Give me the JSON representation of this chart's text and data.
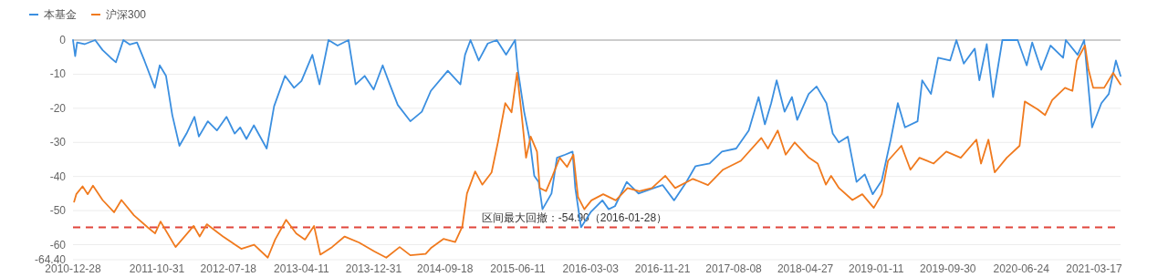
{
  "chart_data": {
    "type": "line",
    "xlim": [
      "2010-12-28",
      "2021-06-22"
    ],
    "xticks": [
      "2010-12-28",
      "2011-10-31",
      "2012-07-18",
      "2013-04-11",
      "2013-12-31",
      "2014-09-18",
      "2015-06-11",
      "2016-03-03",
      "2016-11-21",
      "2017-08-08",
      "2018-04-27",
      "2019-01-11",
      "2019-09-30",
      "2020-06-24",
      "2021-03-17"
    ],
    "ylim": [
      -64.4,
      0
    ],
    "yticks": [
      {
        "value": -64.4,
        "label": "-64.40"
      },
      -60,
      -50,
      -40,
      -30,
      -20,
      -10,
      0
    ],
    "grid": "y",
    "legend": "top left",
    "line_style": "solid",
    "marker": "none",
    "ref_lines": [
      {
        "axis": "y",
        "value": -54.9,
        "label": "区间最大回撤：-54.90（2016-01-28）",
        "color": "#e0443a",
        "line_style": "dashed"
      }
    ],
    "series": [
      {
        "name": "本基金",
        "color": "#3b8fe0",
        "x": [
          "2010-12-28",
          "2011-01-05",
          "2011-01-12",
          "2011-02-08",
          "2011-03-19",
          "2011-04-15",
          "2011-05-15",
          "2011-06-03",
          "2011-06-30",
          "2011-07-23",
          "2011-08-19",
          "2011-09-15",
          "2011-10-23",
          "2011-11-10",
          "2011-12-03",
          "2011-12-26",
          "2012-01-21",
          "2012-02-16",
          "2012-03-16",
          "2012-04-01",
          "2012-05-04",
          "2012-06-06",
          "2012-07-11",
          "2012-08-10",
          "2012-08-30",
          "2012-09-22",
          "2012-10-19",
          "2012-12-05",
          "2013-01-01",
          "2013-02-10",
          "2013-03-15",
          "2013-04-11",
          "2013-05-21",
          "2013-06-16",
          "2013-07-19",
          "2013-08-21",
          "2013-09-30",
          "2013-10-26",
          "2013-11-28",
          "2013-12-31",
          "2014-02-02",
          "2014-02-28",
          "2014-03-29",
          "2014-05-14",
          "2014-06-25",
          "2014-07-28",
          "2014-09-28",
          "2014-11-13",
          "2014-11-30",
          "2014-12-20",
          "2015-01-19",
          "2015-02-21",
          "2015-03-26",
          "2015-04-29",
          "2015-06-01",
          "2015-06-11",
          "2015-07-04",
          "2015-07-24",
          "2015-08-10",
          "2015-08-26",
          "2015-09-09",
          "2015-10-12",
          "2015-11-01",
          "2015-12-01",
          "2015-12-28",
          "2016-01-07",
          "2016-01-28",
          "2016-03-03",
          "2016-04-15",
          "2016-05-08",
          "2016-05-31",
          "2016-07-13",
          "2016-08-25",
          "2016-10-20",
          "2016-11-21",
          "2017-01-02",
          "2017-02-16",
          "2017-03-21",
          "2017-05-12",
          "2017-06-26",
          "2017-08-17",
          "2017-10-02",
          "2017-11-07",
          "2017-11-30",
          "2017-12-23",
          "2018-01-12",
          "2018-02-10",
          "2018-03-09",
          "2018-03-28",
          "2018-05-09",
          "2018-06-07",
          "2018-07-13",
          "2018-08-05",
          "2018-08-27",
          "2018-09-29",
          "2018-10-31",
          "2018-11-30",
          "2018-12-29",
          "2019-01-31",
          "2019-03-05",
          "2019-03-31",
          "2019-04-26",
          "2019-06-11",
          "2019-06-28",
          "2019-07-30",
          "2019-08-25",
          "2019-10-08",
          "2019-10-31",
          "2019-11-27",
          "2020-01-06",
          "2020-01-23",
          "2020-02-19",
          "2020-03-13",
          "2020-04-16",
          "2020-06-11",
          "2020-07-14",
          "2020-08-03",
          "2020-09-05",
          "2020-10-09",
          "2020-11-24",
          "2020-12-04",
          "2021-01-16",
          "2021-02-09",
          "2021-03-10",
          "2021-04-13",
          "2021-05-10",
          "2021-06-05",
          "2021-06-22"
        ],
        "values": [
          0,
          -4.7,
          -0.7,
          -1.2,
          0,
          -2.9,
          -5.2,
          -6.5,
          0,
          -1.3,
          -0.7,
          -6,
          -14,
          -7.4,
          -10.5,
          -22,
          -31,
          -27.4,
          -22.5,
          -28.3,
          -23.8,
          -26.5,
          -22.5,
          -27.4,
          -25.6,
          -29,
          -25,
          -31.8,
          -19.4,
          -10.5,
          -14,
          -12,
          -4.3,
          -13,
          0,
          -1.6,
          0,
          -13,
          -10.5,
          -14.5,
          -7.4,
          -13,
          -19,
          -23.8,
          -21,
          -14.9,
          -9,
          -13,
          -4.3,
          0,
          -6,
          -1,
          0,
          -4.3,
          0,
          -8.7,
          -21,
          -29,
          -39.8,
          -41.6,
          -49.6,
          -45,
          -34.5,
          -33.6,
          -32.7,
          -43.4,
          -54.9,
          -50.5,
          -47,
          -49.6,
          -48.7,
          -41.6,
          -45,
          -43.4,
          -42.5,
          -47,
          -41.6,
          -37,
          -36.2,
          -32.7,
          -31.8,
          -26.5,
          -16.7,
          -24.7,
          -18.5,
          -11.8,
          -21,
          -16.7,
          -23.4,
          -15.8,
          -13.6,
          -18.5,
          -27.4,
          -30,
          -28.3,
          -41.6,
          -39.4,
          -45.2,
          -41.2,
          -29.2,
          -18.5,
          -25.6,
          -23.8,
          -11.8,
          -15.8,
          -5.2,
          -6,
          0,
          -6.9,
          -2.5,
          -11.8,
          -1.2,
          -16.7,
          0,
          0,
          -7.4,
          -0.7,
          -8.7,
          -1.6,
          -5.2,
          0,
          -4.3,
          0,
          -25.6,
          -18.5,
          -15.8,
          -6,
          -10.5
        ]
      },
      {
        "name": "沪深300",
        "color": "#f07a1e",
        "x": [
          "2011-01-01",
          "2011-01-09",
          "2011-02-01",
          "2011-02-20",
          "2011-03-11",
          "2011-04-15",
          "2011-05-27",
          "2011-06-23",
          "2011-08-08",
          "2011-09-27",
          "2011-10-24",
          "2011-11-13",
          "2012-01-07",
          "2012-03-13",
          "2012-04-04",
          "2012-04-30",
          "2012-06-28",
          "2012-09-03",
          "2012-10-20",
          "2012-12-09",
          "2013-01-05",
          "2013-02-14",
          "2013-03-23",
          "2013-04-24",
          "2013-05-27",
          "2013-06-19",
          "2013-08-01",
          "2013-09-16",
          "2013-11-08",
          "2014-01-03",
          "2014-02-15",
          "2014-04-05",
          "2014-05-14",
          "2014-07-09",
          "2014-07-28",
          "2014-09-12",
          "2014-10-25",
          "2014-11-20",
          "2014-12-07",
          "2015-01-06",
          "2015-02-01",
          "2015-03-07",
          "2015-03-30",
          "2015-04-26",
          "2015-05-19",
          "2015-06-08",
          "2015-06-24",
          "2015-07-11",
          "2015-07-28",
          "2015-08-20",
          "2015-08-30",
          "2015-09-22",
          "2015-10-16",
          "2015-11-11",
          "2015-12-08",
          "2015-12-31",
          "2016-01-17",
          "2016-02-09",
          "2016-03-06",
          "2016-04-18",
          "2016-06-03",
          "2016-07-16",
          "2016-08-28",
          "2016-10-13",
          "2016-12-01",
          "2017-01-06",
          "2017-03-12",
          "2017-05-06",
          "2017-06-30",
          "2017-09-03",
          "2017-11-17",
          "2017-12-11",
          "2018-01-16",
          "2018-02-14",
          "2018-03-19",
          "2018-05-10",
          "2018-06-11",
          "2018-07-11",
          "2018-07-30",
          "2018-08-28",
          "2018-10-16",
          "2018-11-21",
          "2019-01-02",
          "2019-01-31",
          "2019-02-23",
          "2019-04-13",
          "2019-05-16",
          "2019-06-18",
          "2019-08-09",
          "2019-09-24",
          "2019-11-16",
          "2020-01-12",
          "2020-01-29",
          "2020-02-25",
          "2020-03-19",
          "2020-05-02",
          "2020-06-18",
          "2020-07-07",
          "2020-08-23",
          "2020-09-19",
          "2020-10-15",
          "2020-12-01",
          "2020-12-28",
          "2021-01-13",
          "2021-02-12",
          "2021-02-25",
          "2021-03-14",
          "2021-04-23",
          "2021-05-26",
          "2021-06-22"
        ],
        "values": [
          -47.4,
          -45.2,
          -42.9,
          -45.2,
          -42.7,
          -46.9,
          -50.5,
          -46.9,
          -51.4,
          -54.9,
          -56.7,
          -53.2,
          -60.7,
          -54.5,
          -57.6,
          -54,
          -57.6,
          -61.2,
          -60,
          -63.8,
          -58.5,
          -52.7,
          -56.7,
          -58.5,
          -54.5,
          -62.9,
          -60.7,
          -57.6,
          -59.4,
          -62,
          -63.8,
          -60.7,
          -63.1,
          -62.7,
          -61,
          -58.3,
          -59.2,
          -54.7,
          -45,
          -38.5,
          -42.4,
          -38.8,
          -30,
          -18.5,
          -21.2,
          -9.6,
          -21.2,
          -34.5,
          -28.3,
          -32.7,
          -43.4,
          -44.3,
          -39.8,
          -34.5,
          -37.2,
          -33.6,
          -46,
          -49.6,
          -47,
          -45.2,
          -47,
          -43.4,
          -44.3,
          -43.4,
          -39.8,
          -43.4,
          -40.7,
          -42.5,
          -38,
          -35.4,
          -28.7,
          -31.8,
          -26.5,
          -33.6,
          -30,
          -34.5,
          -36.2,
          -42.4,
          -39.8,
          -43.4,
          -46.9,
          -45.2,
          -49.2,
          -45.2,
          -35.4,
          -31,
          -38,
          -34.5,
          -36.2,
          -32.7,
          -34.5,
          -29.2,
          -36.2,
          -29.2,
          -38.8,
          -34.5,
          -31,
          -18,
          -20.3,
          -22,
          -17.6,
          -14,
          -14.9,
          -6,
          -1.6,
          -8.7,
          -14,
          -14,
          -9.6,
          -13
        ]
      }
    ]
  }
}
